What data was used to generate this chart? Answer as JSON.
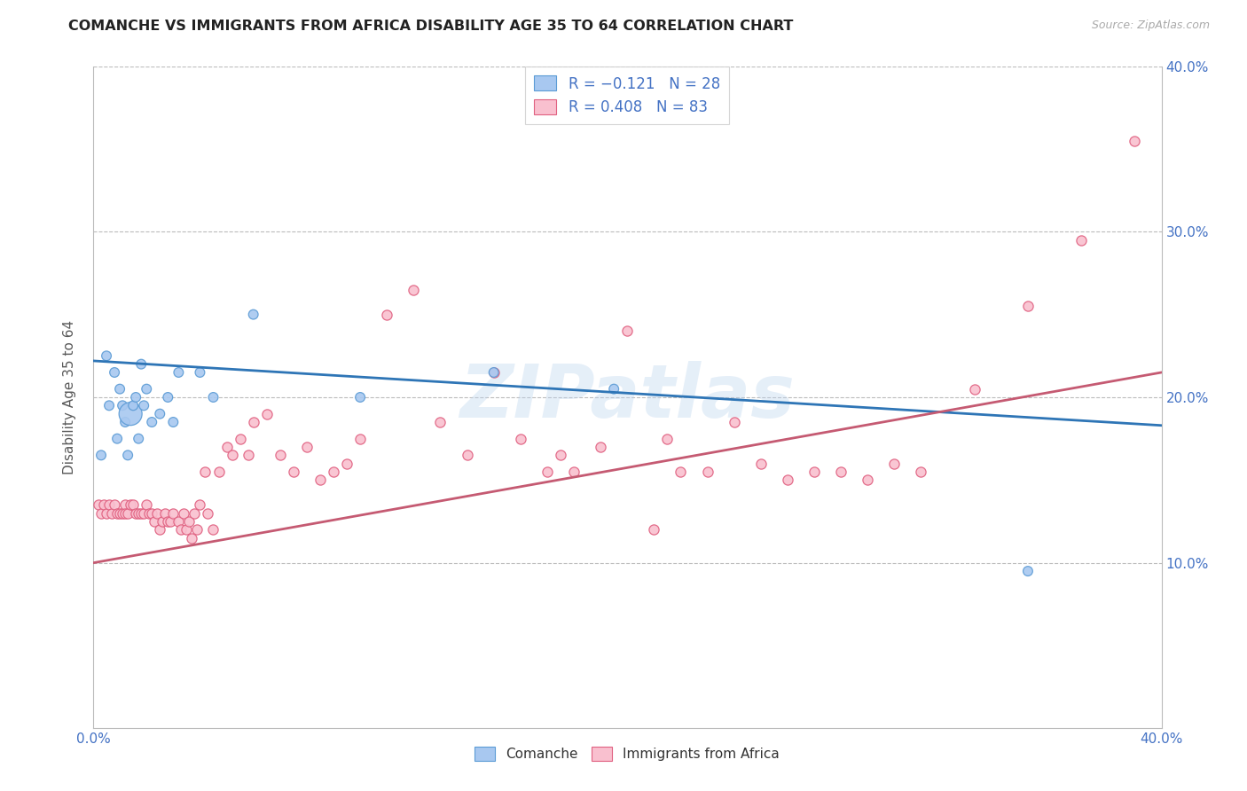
{
  "title": "COMANCHE VS IMMIGRANTS FROM AFRICA DISABILITY AGE 35 TO 64 CORRELATION CHART",
  "source": "Source: ZipAtlas.com",
  "ylabel": "Disability Age 35 to 64",
  "watermark": "ZIPatlas",
  "xlim": [
    0.0,
    0.4
  ],
  "ylim": [
    0.0,
    0.4
  ],
  "legend1_R": "-0.121",
  "legend1_N": "28",
  "legend2_R": "0.408",
  "legend2_N": "83",
  "blue_color": "#A8C8F0",
  "blue_edge": "#5B9BD5",
  "pink_color": "#F9C0CF",
  "pink_edge": "#E06080",
  "trend_blue": "#2E75B6",
  "trend_pink": "#C55A72",
  "grid_color": "#BBBBBB",
  "axis_color": "#4472C4",
  "label_color": "#595959",
  "comanche_label": "Comanche",
  "africa_label": "Immigrants from Africa",
  "blue_trend_start": 0.222,
  "blue_trend_end": 0.183,
  "pink_trend_start": 0.1,
  "pink_trend_end": 0.215,
  "comanche_x": [
    0.003,
    0.005,
    0.006,
    0.008,
    0.009,
    0.01,
    0.011,
    0.012,
    0.013,
    0.014,
    0.015,
    0.016,
    0.017,
    0.018,
    0.019,
    0.02,
    0.022,
    0.025,
    0.028,
    0.03,
    0.032,
    0.04,
    0.045,
    0.06,
    0.1,
    0.15,
    0.195,
    0.35
  ],
  "comanche_y": [
    0.165,
    0.225,
    0.195,
    0.215,
    0.175,
    0.205,
    0.195,
    0.185,
    0.165,
    0.19,
    0.195,
    0.2,
    0.175,
    0.22,
    0.195,
    0.205,
    0.185,
    0.19,
    0.2,
    0.185,
    0.215,
    0.215,
    0.2,
    0.25,
    0.2,
    0.215,
    0.205,
    0.095
  ],
  "comanche_sizes": [
    60,
    60,
    60,
    60,
    60,
    60,
    60,
    60,
    60,
    350,
    60,
    60,
    60,
    60,
    60,
    60,
    60,
    60,
    60,
    60,
    60,
    60,
    60,
    60,
    60,
    60,
    60,
    60
  ],
  "africa_x": [
    0.002,
    0.003,
    0.004,
    0.005,
    0.006,
    0.007,
    0.008,
    0.009,
    0.01,
    0.011,
    0.012,
    0.012,
    0.013,
    0.014,
    0.015,
    0.016,
    0.017,
    0.018,
    0.019,
    0.02,
    0.021,
    0.022,
    0.023,
    0.024,
    0.025,
    0.026,
    0.027,
    0.028,
    0.029,
    0.03,
    0.032,
    0.033,
    0.034,
    0.035,
    0.036,
    0.037,
    0.038,
    0.039,
    0.04,
    0.042,
    0.043,
    0.045,
    0.047,
    0.05,
    0.052,
    0.055,
    0.058,
    0.06,
    0.065,
    0.07,
    0.075,
    0.08,
    0.085,
    0.09,
    0.095,
    0.1,
    0.11,
    0.12,
    0.13,
    0.14,
    0.15,
    0.16,
    0.17,
    0.175,
    0.18,
    0.19,
    0.2,
    0.21,
    0.215,
    0.22,
    0.23,
    0.24,
    0.25,
    0.26,
    0.27,
    0.28,
    0.29,
    0.3,
    0.31,
    0.33,
    0.35,
    0.37,
    0.39
  ],
  "africa_y": [
    0.135,
    0.13,
    0.135,
    0.13,
    0.135,
    0.13,
    0.135,
    0.13,
    0.13,
    0.13,
    0.135,
    0.13,
    0.13,
    0.135,
    0.135,
    0.13,
    0.13,
    0.13,
    0.13,
    0.135,
    0.13,
    0.13,
    0.125,
    0.13,
    0.12,
    0.125,
    0.13,
    0.125,
    0.125,
    0.13,
    0.125,
    0.12,
    0.13,
    0.12,
    0.125,
    0.115,
    0.13,
    0.12,
    0.135,
    0.155,
    0.13,
    0.12,
    0.155,
    0.17,
    0.165,
    0.175,
    0.165,
    0.185,
    0.19,
    0.165,
    0.155,
    0.17,
    0.15,
    0.155,
    0.16,
    0.175,
    0.25,
    0.265,
    0.185,
    0.165,
    0.215,
    0.175,
    0.155,
    0.165,
    0.155,
    0.17,
    0.24,
    0.12,
    0.175,
    0.155,
    0.155,
    0.185,
    0.16,
    0.15,
    0.155,
    0.155,
    0.15,
    0.16,
    0.155,
    0.205,
    0.255,
    0.295,
    0.355
  ],
  "africa_sizes_large": [
    3,
    4,
    5,
    6,
    7,
    8,
    9,
    10,
    11,
    12,
    13,
    14,
    15,
    16,
    17,
    18,
    19,
    20,
    21,
    22,
    23,
    24,
    25
  ]
}
